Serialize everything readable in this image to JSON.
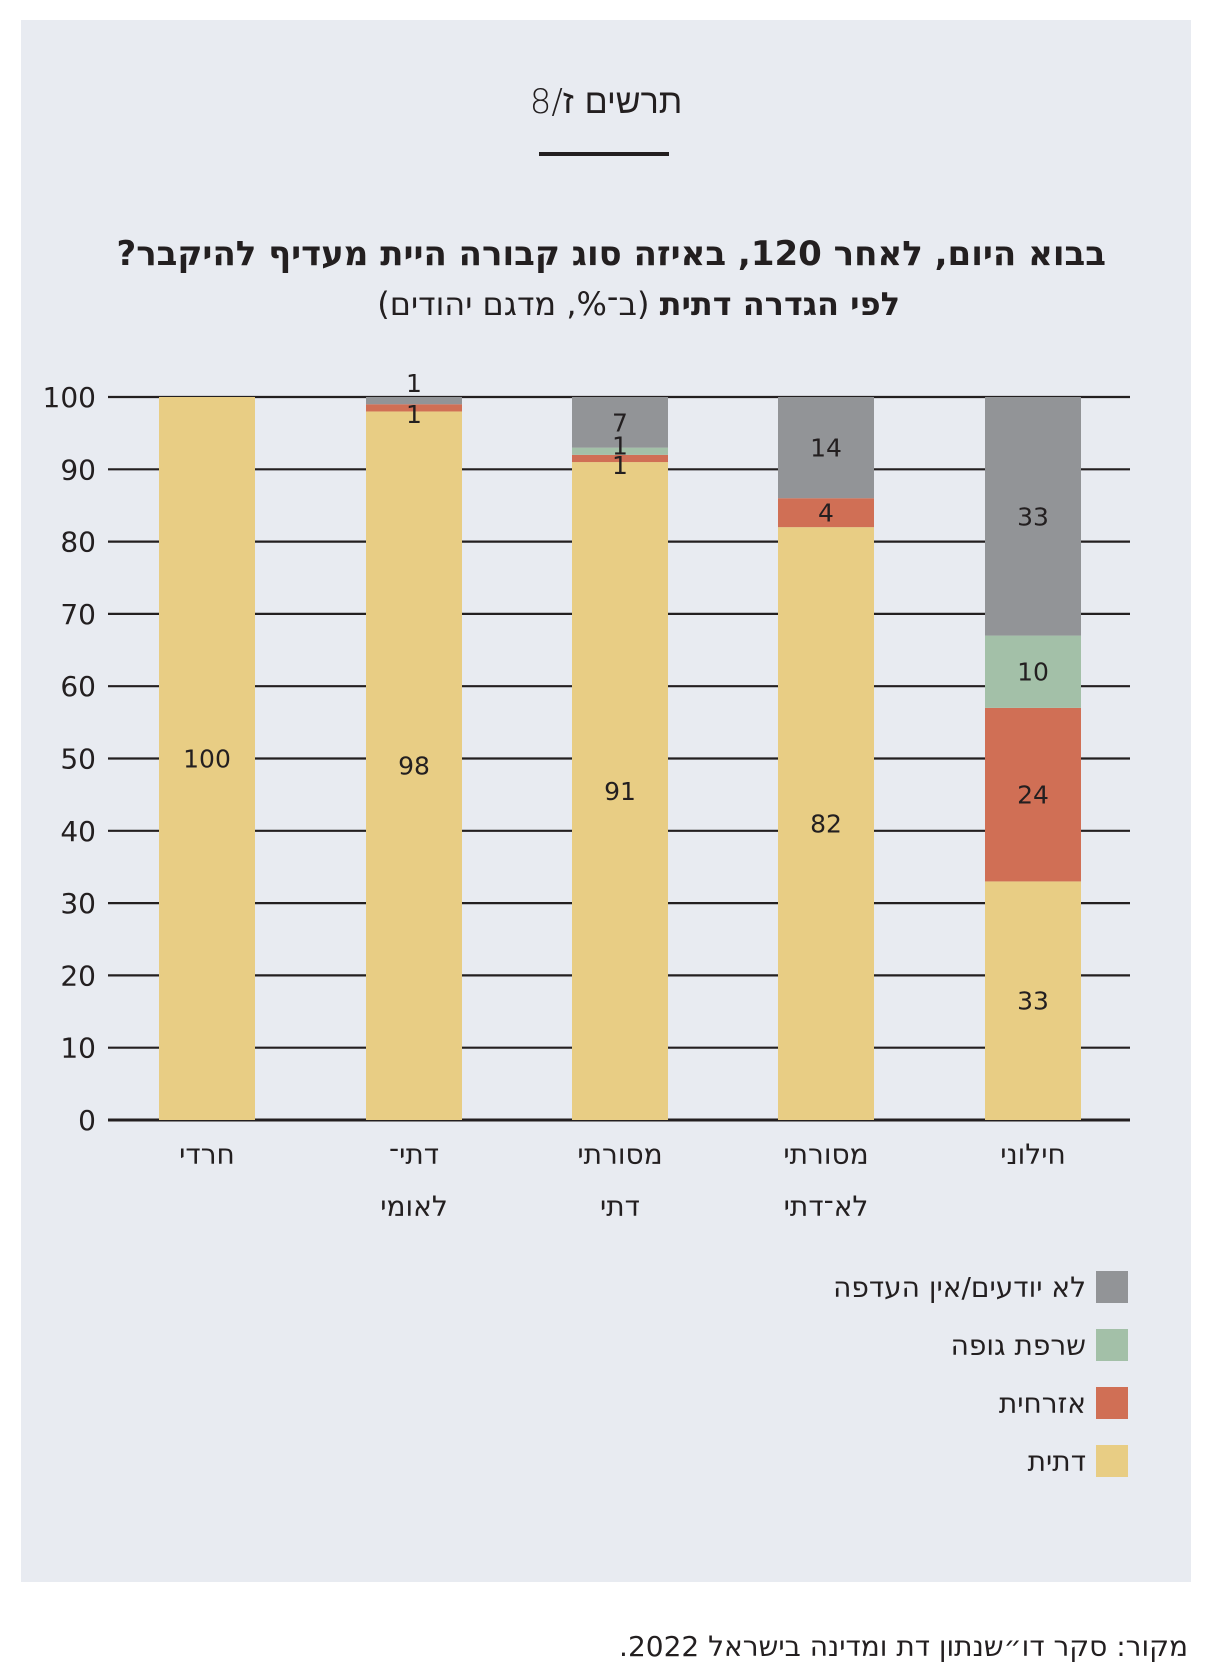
{
  "figure_label": "תרשים ז/8",
  "title_line1": "בבוא היום, לאחר 120, באיזה סוג קבורה היית מעדיף להיקבר?",
  "title_line2_bold": "לפי הגדרה דתית",
  "title_line2_rest": " (ב־%, מדגם יהודים)",
  "source": "מקור: סקר דו״שנתון דת ומדינה בישראל 2022.",
  "colors": {
    "religious": "#e8cd84",
    "civil": "#d06f55",
    "cremation": "#a3c0a8",
    "unknown": "#929497"
  },
  "chart_data": {
    "type": "bar",
    "stacked": true,
    "title": "בבוא היום, לאחר 120, באיזה סוג קבורה היית מעדיף להיקבר?",
    "subtitle": "לפי הגדרה דתית (ב־%, מדגם יהודים)",
    "categories": [
      [
        "חרדי"
      ],
      [
        "דתי־",
        "לאומי"
      ],
      [
        "מסורתי",
        "דתי"
      ],
      [
        "מסורתי",
        "לא־דתי"
      ],
      [
        "חילוני"
      ]
    ],
    "series": [
      {
        "name": "דתית",
        "color": "#e8cd84",
        "values": [
          100,
          98,
          91,
          82,
          33
        ]
      },
      {
        "name": "אזרחית",
        "color": "#d06f55",
        "values": [
          0,
          1,
          1,
          4,
          24
        ]
      },
      {
        "name": "שרפת גופה",
        "color": "#a3c0a8",
        "values": [
          0,
          0,
          1,
          0,
          10
        ]
      },
      {
        "name": "לא יודעים/אין העדפה",
        "color": "#929497",
        "values": [
          0,
          1,
          7,
          14,
          33
        ]
      }
    ],
    "yticks": [
      0,
      10,
      20,
      30,
      40,
      50,
      60,
      70,
      80,
      90,
      100
    ],
    "ylim": [
      0,
      100
    ],
    "grid": true,
    "legend_position": "bottom-right"
  },
  "legend": [
    {
      "label": "לא יודעים/אין העדפה",
      "color": "#929497"
    },
    {
      "label": "שרפת גופה",
      "color": "#a3c0a8"
    },
    {
      "label": "אזרחית",
      "color": "#d06f55"
    },
    {
      "label": "דתית",
      "color": "#e8cd84"
    }
  ]
}
